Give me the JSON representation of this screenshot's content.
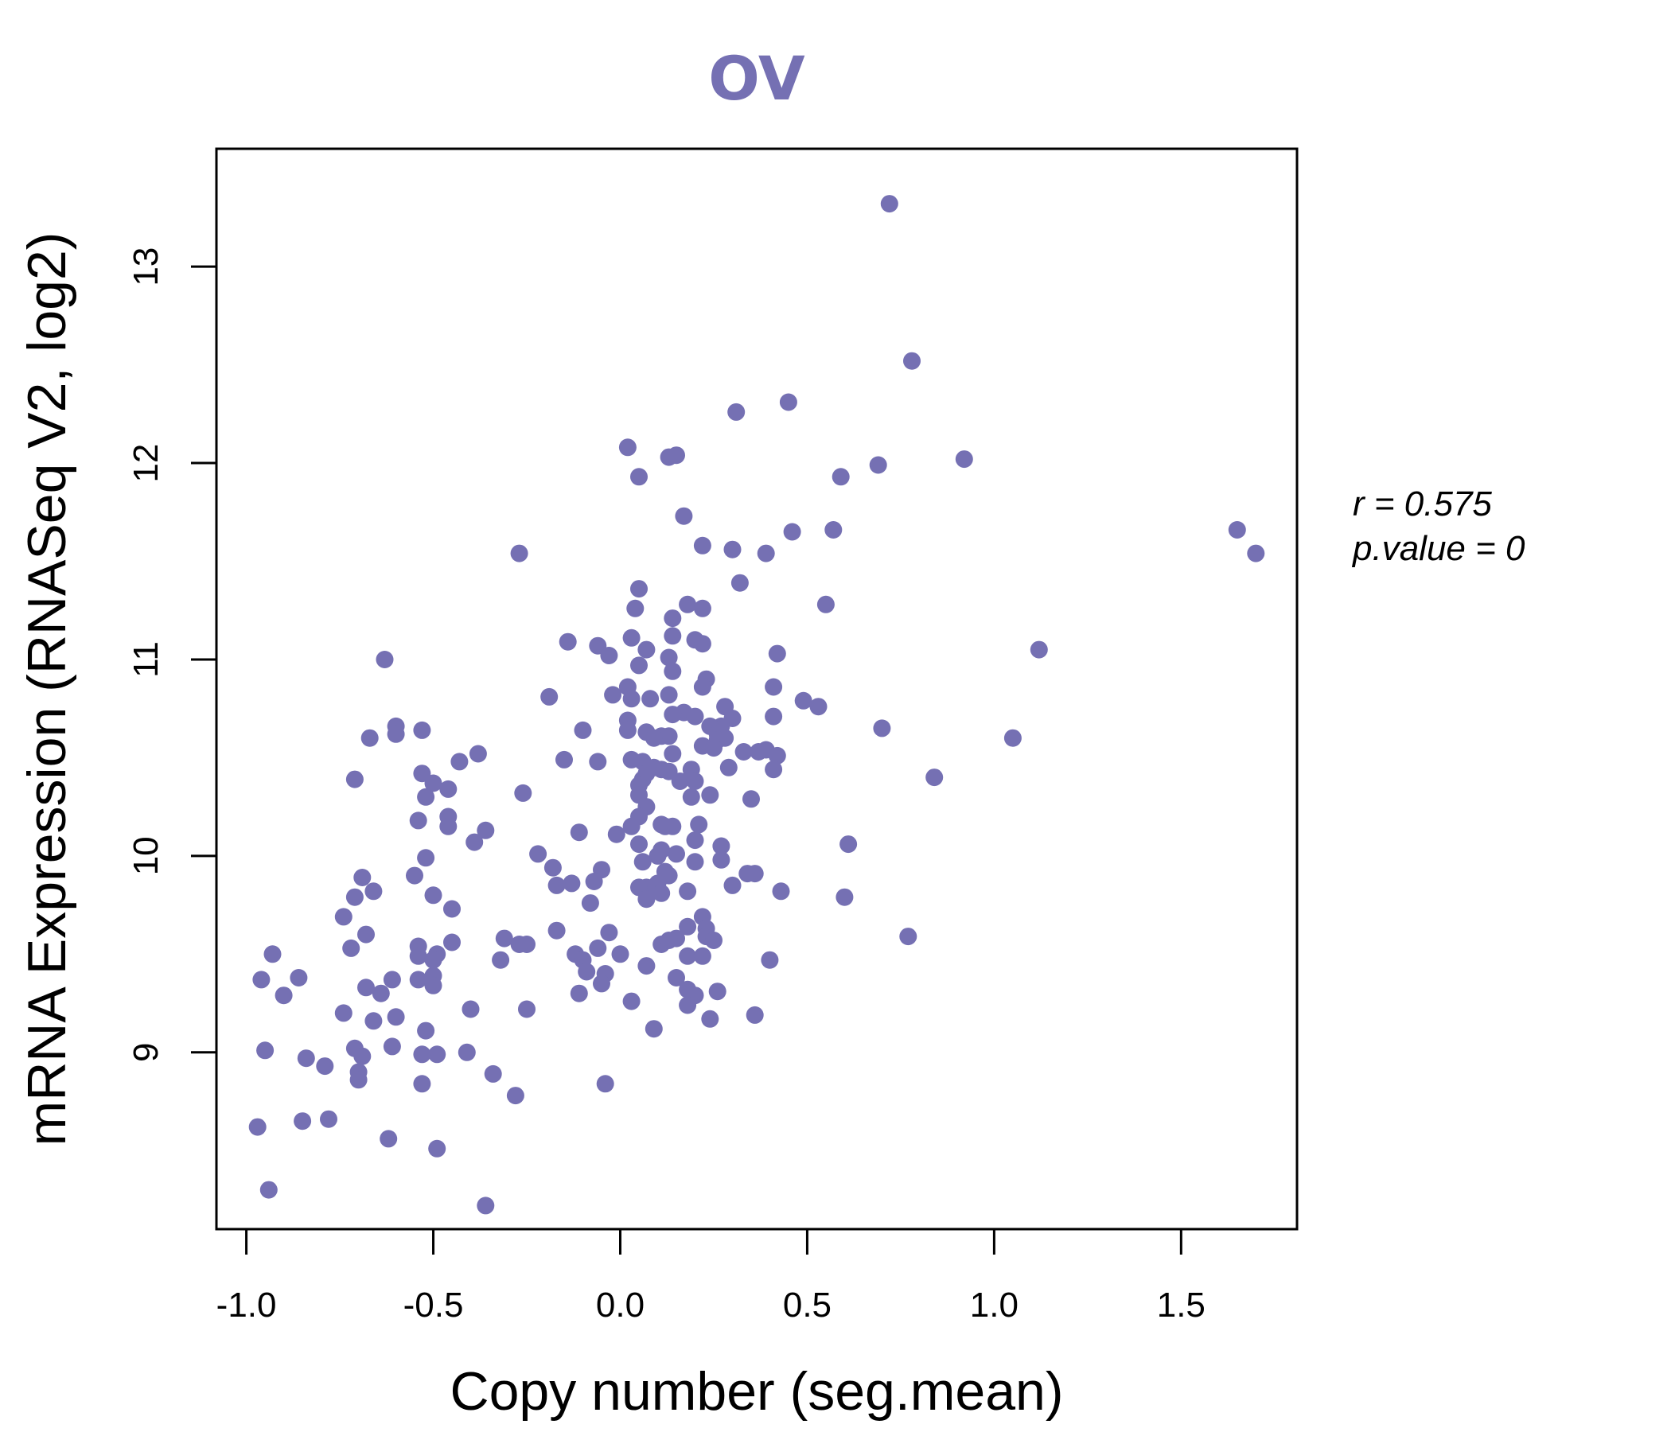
{
  "chart_data": {
    "type": "scatter",
    "title": "OV",
    "xlabel": "Copy number (seg.mean)",
    "ylabel": "mRNA Expression (RNASeq V2, log2)",
    "xlim": [
      -1.08,
      1.81
    ],
    "ylim": [
      8.1,
      13.6
    ],
    "xticks": [
      -1.0,
      -0.5,
      0.0,
      0.5,
      1.0,
      1.5
    ],
    "xtick_labels": [
      "-1.0",
      "-0.5",
      "0.0",
      "0.5",
      "1.0",
      "1.5"
    ],
    "yticks": [
      9,
      10,
      11,
      12,
      13
    ],
    "ytick_labels": [
      "9",
      "10",
      "11",
      "12",
      "13"
    ],
    "point_color": "#7570b3",
    "grid": false,
    "annotations": [
      "r = 0.575",
      "p.value = 0"
    ],
    "points": [
      [
        0.72,
        13.32
      ],
      [
        0.78,
        12.52
      ],
      [
        0.45,
        12.31
      ],
      [
        0.31,
        12.26
      ],
      [
        0.02,
        12.08
      ],
      [
        0.13,
        12.03
      ],
      [
        0.15,
        12.04
      ],
      [
        0.05,
        11.93
      ],
      [
        0.69,
        11.99
      ],
      [
        0.59,
        11.93
      ],
      [
        0.92,
        12.02
      ],
      [
        0.17,
        11.73
      ],
      [
        0.22,
        11.58
      ],
      [
        0.3,
        11.56
      ],
      [
        0.39,
        11.54
      ],
      [
        0.46,
        11.65
      ],
      [
        0.57,
        11.66
      ],
      [
        1.65,
        11.66
      ],
      [
        1.7,
        11.54
      ],
      [
        -0.27,
        11.54
      ],
      [
        0.32,
        11.39
      ],
      [
        0.05,
        11.36
      ],
      [
        0.18,
        11.28
      ],
      [
        0.22,
        11.26
      ],
      [
        0.04,
        11.26
      ],
      [
        0.55,
        11.28
      ],
      [
        0.14,
        11.21
      ],
      [
        0.03,
        11.11
      ],
      [
        0.14,
        11.12
      ],
      [
        0.2,
        11.1
      ],
      [
        0.22,
        11.08
      ],
      [
        -0.14,
        11.09
      ],
      [
        -0.06,
        11.07
      ],
      [
        0.07,
        11.05
      ],
      [
        0.42,
        11.03
      ],
      [
        1.12,
        11.05
      ],
      [
        -0.03,
        11.02
      ],
      [
        0.13,
        11.01
      ],
      [
        0.05,
        10.97
      ],
      [
        0.14,
        10.94
      ],
      [
        -0.63,
        11.0
      ],
      [
        0.23,
        10.9
      ],
      [
        0.22,
        10.86
      ],
      [
        0.02,
        10.86
      ],
      [
        0.41,
        10.86
      ],
      [
        -0.19,
        10.81
      ],
      [
        -0.02,
        10.82
      ],
      [
        0.03,
        10.8
      ],
      [
        0.08,
        10.8
      ],
      [
        0.13,
        10.82
      ],
      [
        0.49,
        10.79
      ],
      [
        0.53,
        10.76
      ],
      [
        0.28,
        10.76
      ],
      [
        0.17,
        10.73
      ],
      [
        0.14,
        10.72
      ],
      [
        0.2,
        10.71
      ],
      [
        0.3,
        10.7
      ],
      [
        0.41,
        10.71
      ],
      [
        0.02,
        10.69
      ],
      [
        -0.1,
        10.64
      ],
      [
        0.02,
        10.64
      ],
      [
        0.07,
        10.63
      ],
      [
        0.27,
        10.66
      ],
      [
        0.24,
        10.66
      ],
      [
        0.26,
        10.62
      ],
      [
        0.11,
        10.61
      ],
      [
        0.13,
        10.61
      ],
      [
        0.28,
        10.6
      ],
      [
        0.09,
        10.6
      ],
      [
        0.26,
        10.59
      ],
      [
        -0.6,
        10.66
      ],
      [
        -0.53,
        10.64
      ],
      [
        -0.67,
        10.6
      ],
      [
        -0.6,
        10.62
      ],
      [
        0.7,
        10.65
      ],
      [
        1.05,
        10.6
      ],
      [
        0.22,
        10.56
      ],
      [
        0.33,
        10.53
      ],
      [
        0.37,
        10.53
      ],
      [
        0.39,
        10.54
      ],
      [
        0.14,
        10.52
      ],
      [
        0.25,
        10.55
      ],
      [
        -0.38,
        10.52
      ],
      [
        0.42,
        10.51
      ],
      [
        0.06,
        10.48
      ],
      [
        0.03,
        10.49
      ],
      [
        -0.06,
        10.48
      ],
      [
        -0.15,
        10.49
      ],
      [
        -0.43,
        10.48
      ],
      [
        0.09,
        10.45
      ],
      [
        0.11,
        10.44
      ],
      [
        0.19,
        10.44
      ],
      [
        0.29,
        10.45
      ],
      [
        0.41,
        10.44
      ],
      [
        0.13,
        10.43
      ],
      [
        0.07,
        10.42
      ],
      [
        -0.53,
        10.42
      ],
      [
        0.06,
        10.39
      ],
      [
        0.16,
        10.38
      ],
      [
        0.2,
        10.38
      ],
      [
        -0.5,
        10.37
      ],
      [
        0.84,
        10.4
      ],
      [
        0.05,
        10.36
      ],
      [
        -0.71,
        10.39
      ],
      [
        -0.46,
        10.34
      ],
      [
        -0.52,
        10.3
      ],
      [
        0.24,
        10.31
      ],
      [
        -0.26,
        10.32
      ],
      [
        0.19,
        10.3
      ],
      [
        0.05,
        10.31
      ],
      [
        0.35,
        10.29
      ],
      [
        0.07,
        10.25
      ],
      [
        0.05,
        10.2
      ],
      [
        -0.46,
        10.2
      ],
      [
        -0.54,
        10.18
      ],
      [
        -0.46,
        10.15
      ],
      [
        0.12,
        10.15
      ],
      [
        0.11,
        10.16
      ],
      [
        0.14,
        10.15
      ],
      [
        0.21,
        10.16
      ],
      [
        0.03,
        10.15
      ],
      [
        -0.36,
        10.13
      ],
      [
        -0.39,
        10.07
      ],
      [
        -0.11,
        10.12
      ],
      [
        -0.01,
        10.11
      ],
      [
        0.2,
        10.08
      ],
      [
        0.27,
        10.05
      ],
      [
        0.11,
        10.03
      ],
      [
        0.05,
        10.06
      ],
      [
        0.61,
        10.06
      ],
      [
        -0.22,
        10.01
      ],
      [
        -0.52,
        9.99
      ],
      [
        0.1,
        10.0
      ],
      [
        0.15,
        10.01
      ],
      [
        0.06,
        9.97
      ],
      [
        0.2,
        9.97
      ],
      [
        0.27,
        9.98
      ],
      [
        -0.05,
        9.93
      ],
      [
        -0.18,
        9.94
      ],
      [
        0.12,
        9.92
      ],
      [
        0.13,
        9.9
      ],
      [
        0.34,
        9.91
      ],
      [
        0.36,
        9.91
      ],
      [
        -0.55,
        9.9
      ],
      [
        -0.69,
        9.89
      ],
      [
        -0.13,
        9.86
      ],
      [
        -0.17,
        9.85
      ],
      [
        -0.07,
        9.87
      ],
      [
        0.1,
        9.86
      ],
      [
        0.07,
        9.84
      ],
      [
        0.3,
        9.85
      ],
      [
        0.05,
        9.84
      ],
      [
        0.18,
        9.82
      ],
      [
        -0.66,
        9.82
      ],
      [
        -0.5,
        9.8
      ],
      [
        0.11,
        9.81
      ],
      [
        0.43,
        9.82
      ],
      [
        -0.71,
        9.79
      ],
      [
        0.07,
        9.78
      ],
      [
        0.6,
        9.79
      ],
      [
        -0.08,
        9.76
      ],
      [
        -0.45,
        9.73
      ],
      [
        -0.74,
        9.69
      ],
      [
        0.22,
        9.69
      ],
      [
        0.18,
        9.64
      ],
      [
        -0.17,
        9.62
      ],
      [
        0.23,
        9.63
      ],
      [
        -0.03,
        9.61
      ],
      [
        0.23,
        9.59
      ],
      [
        -0.68,
        9.6
      ],
      [
        0.25,
        9.57
      ],
      [
        0.77,
        9.59
      ],
      [
        -0.31,
        9.58
      ],
      [
        0.15,
        9.58
      ],
      [
        0.11,
        9.55
      ],
      [
        0.13,
        9.57
      ],
      [
        -0.45,
        9.56
      ],
      [
        -0.27,
        9.55
      ],
      [
        -0.25,
        9.55
      ],
      [
        -0.54,
        9.54
      ],
      [
        -0.72,
        9.53
      ],
      [
        -0.06,
        9.53
      ],
      [
        0.0,
        9.5
      ],
      [
        -0.12,
        9.5
      ],
      [
        -0.93,
        9.5
      ],
      [
        -0.54,
        9.49
      ],
      [
        -0.49,
        9.5
      ],
      [
        0.18,
        9.49
      ],
      [
        0.22,
        9.49
      ],
      [
        -0.1,
        9.47
      ],
      [
        0.4,
        9.47
      ],
      [
        -0.32,
        9.47
      ],
      [
        -0.5,
        9.47
      ],
      [
        0.07,
        9.44
      ],
      [
        -0.09,
        9.41
      ],
      [
        -0.04,
        9.4
      ],
      [
        -0.5,
        9.39
      ],
      [
        -0.86,
        9.38
      ],
      [
        0.15,
        9.38
      ],
      [
        -0.96,
        9.37
      ],
      [
        -0.54,
        9.37
      ],
      [
        -0.61,
        9.37
      ],
      [
        -0.05,
        9.35
      ],
      [
        -0.5,
        9.34
      ],
      [
        -0.68,
        9.33
      ],
      [
        0.18,
        9.32
      ],
      [
        -0.64,
        9.3
      ],
      [
        -0.11,
        9.3
      ],
      [
        0.26,
        9.31
      ],
      [
        0.2,
        9.29
      ],
      [
        -0.9,
        9.29
      ],
      [
        0.03,
        9.26
      ],
      [
        0.18,
        9.24
      ],
      [
        -0.25,
        9.22
      ],
      [
        -0.4,
        9.22
      ],
      [
        -0.74,
        9.2
      ],
      [
        0.36,
        9.19
      ],
      [
        -0.6,
        9.18
      ],
      [
        0.24,
        9.17
      ],
      [
        -0.66,
        9.16
      ],
      [
        0.09,
        9.12
      ],
      [
        -0.52,
        9.11
      ],
      [
        -0.61,
        9.03
      ],
      [
        -0.95,
        9.01
      ],
      [
        -0.71,
        9.02
      ],
      [
        -0.41,
        9.0
      ],
      [
        -0.49,
        8.99
      ],
      [
        -0.53,
        8.99
      ],
      [
        -0.69,
        8.98
      ],
      [
        -0.84,
        8.97
      ],
      [
        -0.79,
        8.93
      ],
      [
        -0.7,
        8.9
      ],
      [
        -0.34,
        8.89
      ],
      [
        -0.7,
        8.86
      ],
      [
        -0.04,
        8.84
      ],
      [
        -0.53,
        8.84
      ],
      [
        -0.28,
        8.78
      ],
      [
        -0.85,
        8.65
      ],
      [
        -0.78,
        8.66
      ],
      [
        -0.97,
        8.62
      ],
      [
        -0.62,
        8.56
      ],
      [
        -0.49,
        8.51
      ],
      [
        -0.94,
        8.3
      ],
      [
        -0.36,
        8.22
      ]
    ]
  }
}
